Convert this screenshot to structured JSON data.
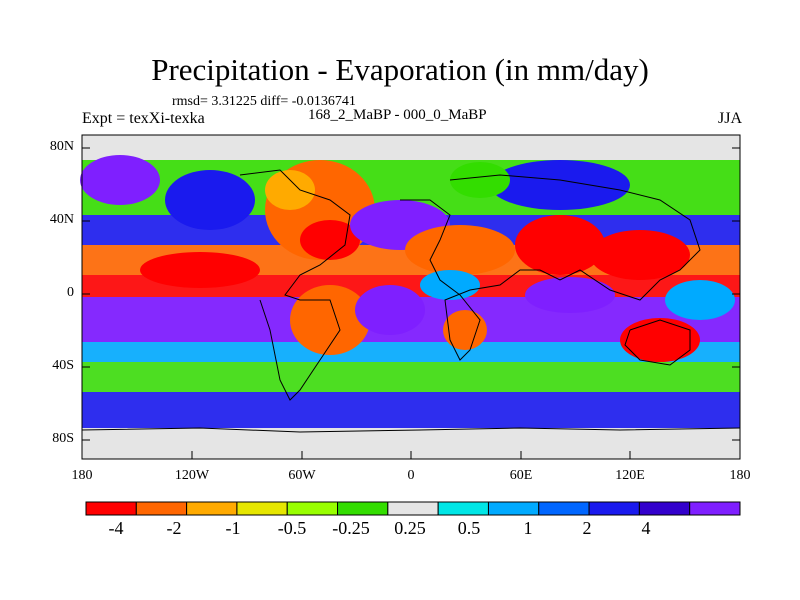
{
  "title": "Precipitation - Evaporation (in mm/day)",
  "stats": "rmsd= 3.31225 diff= -0.0136741",
  "left_string": "Expt = texXi-texka",
  "center_string": "168_2_MaBP - 000_0_MaBP",
  "right_string": "JJA",
  "lat_ticks": [
    "80N",
    "40N",
    "0",
    "40S",
    "80S"
  ],
  "lon_ticks": [
    "180",
    "120W",
    "60W",
    "0",
    "60E",
    "120E",
    "180"
  ],
  "colorbar": {
    "colors": [
      "#ff0000",
      "#ff6600",
      "#ffaa00",
      "#e6e600",
      "#99ff00",
      "#33dd00",
      "#e5e5e5",
      "#00e6e6",
      "#00aaff",
      "#0066ff",
      "#1a1aee",
      "#3300cc",
      "#7f1fff"
    ],
    "labels": [
      "-4",
      "-2",
      "-1",
      "-0.5",
      "-0.25",
      "0.25",
      "0.5",
      "1",
      "2",
      "4"
    ]
  },
  "map_colors": {
    "dry_strong": "#ff0000",
    "dry": "#ff6600",
    "dry_weak": "#ffaa00",
    "neutral": "#e5e5e5",
    "wet_weak": "#33dd00",
    "wet": "#00aaff",
    "wet_strong": "#1a1aee",
    "wet_max": "#7f1fff"
  }
}
